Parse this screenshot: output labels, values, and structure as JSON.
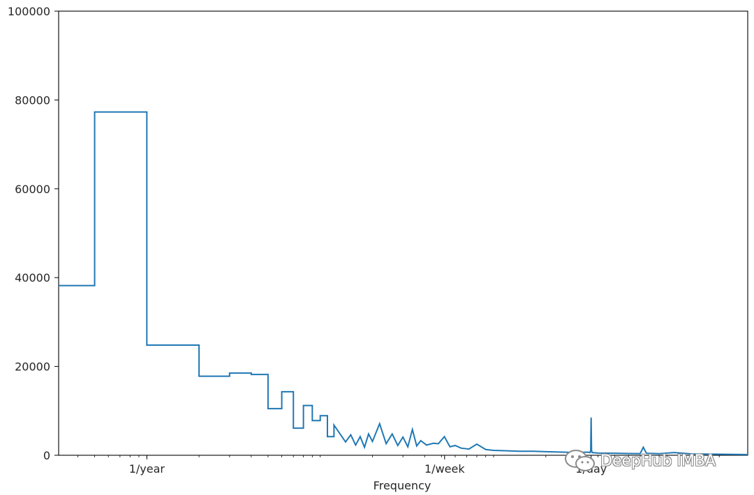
{
  "chart_data": {
    "type": "line",
    "title": "",
    "xlabel": "Frequency",
    "ylabel": "",
    "x_scale": "log",
    "x_unit": "cycles per year",
    "xlim": [
      0.31,
      2920
    ],
    "ylim": [
      0,
      100000
    ],
    "y_ticks": [
      0,
      20000,
      40000,
      60000,
      80000,
      100000
    ],
    "x_ticks": [
      {
        "value": 1,
        "label": "1/year"
      },
      {
        "value": 52.1429,
        "label": "1/week"
      },
      {
        "value": 365.2524,
        "label": "1/day"
      }
    ],
    "grid": false,
    "line_color": "#1f77b4",
    "series": [
      {
        "x": [
          0.31,
          0.5,
          0.5,
          1.0,
          1.0,
          2.0,
          2.0,
          3.0,
          3.0,
          4.0,
          4.0,
          5.0,
          5.0,
          6.0,
          6.0,
          7.0,
          7.0,
          8.0,
          8.0,
          9.0,
          9.0,
          10.0,
          10.0,
          11.0,
          11.0,
          12.0,
          12.0,
          14.0,
          15.0,
          16.0,
          17.0,
          18.0,
          19.0,
          20.0,
          22.0,
          24.0,
          26.0,
          28.0,
          30.0,
          32.0,
          34.0,
          36.0,
          38.0,
          41.0,
          45.0,
          48.0,
          52.0,
          56.0,
          60.0,
          65.0,
          72.0,
          80.0,
          90.0,
          100.0,
          120.0,
          140.0,
          170.0,
          200.0,
          250.0,
          300.0,
          350.0,
          360.0,
          363.0,
          365.0,
          367.0,
          370.0,
          400.0,
          500.0,
          600.0,
          700.0,
          730.0,
          760.0,
          900.0,
          1100.0,
          1400.0,
          1800.0,
          2400.0,
          2920.0
        ],
        "y": [
          38200,
          38200,
          77300,
          77300,
          24800,
          24800,
          17800,
          17800,
          18500,
          18500,
          18200,
          18200,
          10500,
          10500,
          14300,
          14300,
          6100,
          6100,
          11200,
          11200,
          7800,
          7800,
          8900,
          8900,
          4200,
          4200,
          6800,
          3000,
          4600,
          2300,
          4200,
          1800,
          4800,
          3100,
          7100,
          2600,
          4800,
          2200,
          4100,
          1900,
          5800,
          2100,
          3300,
          2300,
          2700,
          2600,
          4200,
          1900,
          2200,
          1600,
          1400,
          2500,
          1300,
          1100,
          1000,
          900,
          900,
          800,
          700,
          600,
          700,
          600,
          1200,
          8500,
          1100,
          600,
          500,
          450,
          400,
          380,
          1800,
          450,
          350,
          600,
          300,
          250,
          200,
          150
        ]
      }
    ]
  },
  "watermark": {
    "text": "DeepHub IMBA",
    "icon": "wechat-icon"
  }
}
